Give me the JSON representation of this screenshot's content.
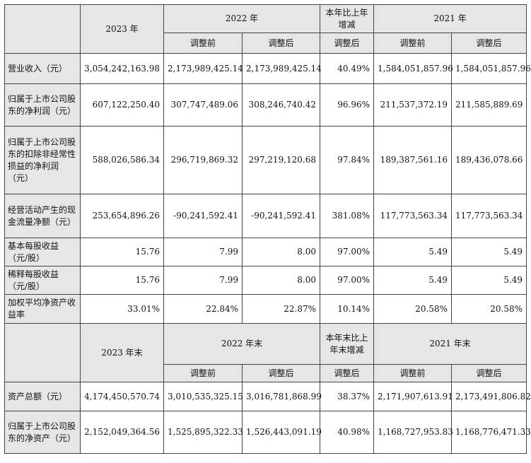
{
  "header1": {
    "y2023": "2023 年",
    "y2022": "2022 年",
    "change": "本年比上年增减",
    "y2021": "2021 年",
    "before": "调整前",
    "after": "调整后"
  },
  "rows1": [
    {
      "label": "营业收入（元）",
      "values": [
        "3,054,242,163.98",
        "2,173,989,425.14",
        "2,173,989,425.14",
        "40.49%",
        "1,584,051,857.96",
        "1,584,051,857.96"
      ]
    },
    {
      "label": "归属于上市公司股东的净利润（元）",
      "values": [
        "607,122,250.40",
        "307,747,489.06",
        "308,246,740.42",
        "96.96%",
        "211,537,372.19",
        "211,585,889.69"
      ]
    },
    {
      "label": "归属于上市公司股东的扣除非经常性损益的净利润（元）",
      "values": [
        "588,026,586.34",
        "296,719,869.32",
        "297,219,120.68",
        "97.84%",
        "189,387,561.16",
        "189,436,078.66"
      ]
    },
    {
      "label": "经营活动产生的现金流量净额（元）",
      "values": [
        "253,654,896.26",
        "-90,241,592.41",
        "-90,241,592.41",
        "381.08%",
        "117,773,563.34",
        "117,773,563.34"
      ]
    },
    {
      "label": "基本每股收益（元/股）",
      "values": [
        "15.76",
        "7.99",
        "8.00",
        "97.00%",
        "5.49",
        "5.49"
      ]
    },
    {
      "label": "稀释每股收益（元/股）",
      "values": [
        "15.76",
        "7.99",
        "8.00",
        "97.00%",
        "5.49",
        "5.49"
      ]
    },
    {
      "label": "加权平均净资产收益率",
      "values": [
        "33.01%",
        "22.84%",
        "22.87%",
        "10.14%",
        "20.58%",
        "20.58%"
      ]
    }
  ],
  "header2": {
    "y2023": "2023 年末",
    "y2022": "2022 年末",
    "change": "本年末比上年末增减",
    "y2021": "2021 年末",
    "before": "调整前",
    "after": "调整后"
  },
  "rows2": [
    {
      "label": "资产总额（元）",
      "values": [
        "4,174,450,570.74",
        "3,010,535,325.15",
        "3,016,781,868.99",
        "38.37%",
        "2,171,907,613.91",
        "2,173,491,806.82"
      ]
    },
    {
      "label": "归属于上市公司股东的净资产（元）",
      "values": [
        "2,152,049,364.56",
        "1,525,895,322.33",
        "1,526,443,091.19",
        "40.98%",
        "1,168,727,953.83",
        "1,168,776,471.33"
      ]
    }
  ]
}
